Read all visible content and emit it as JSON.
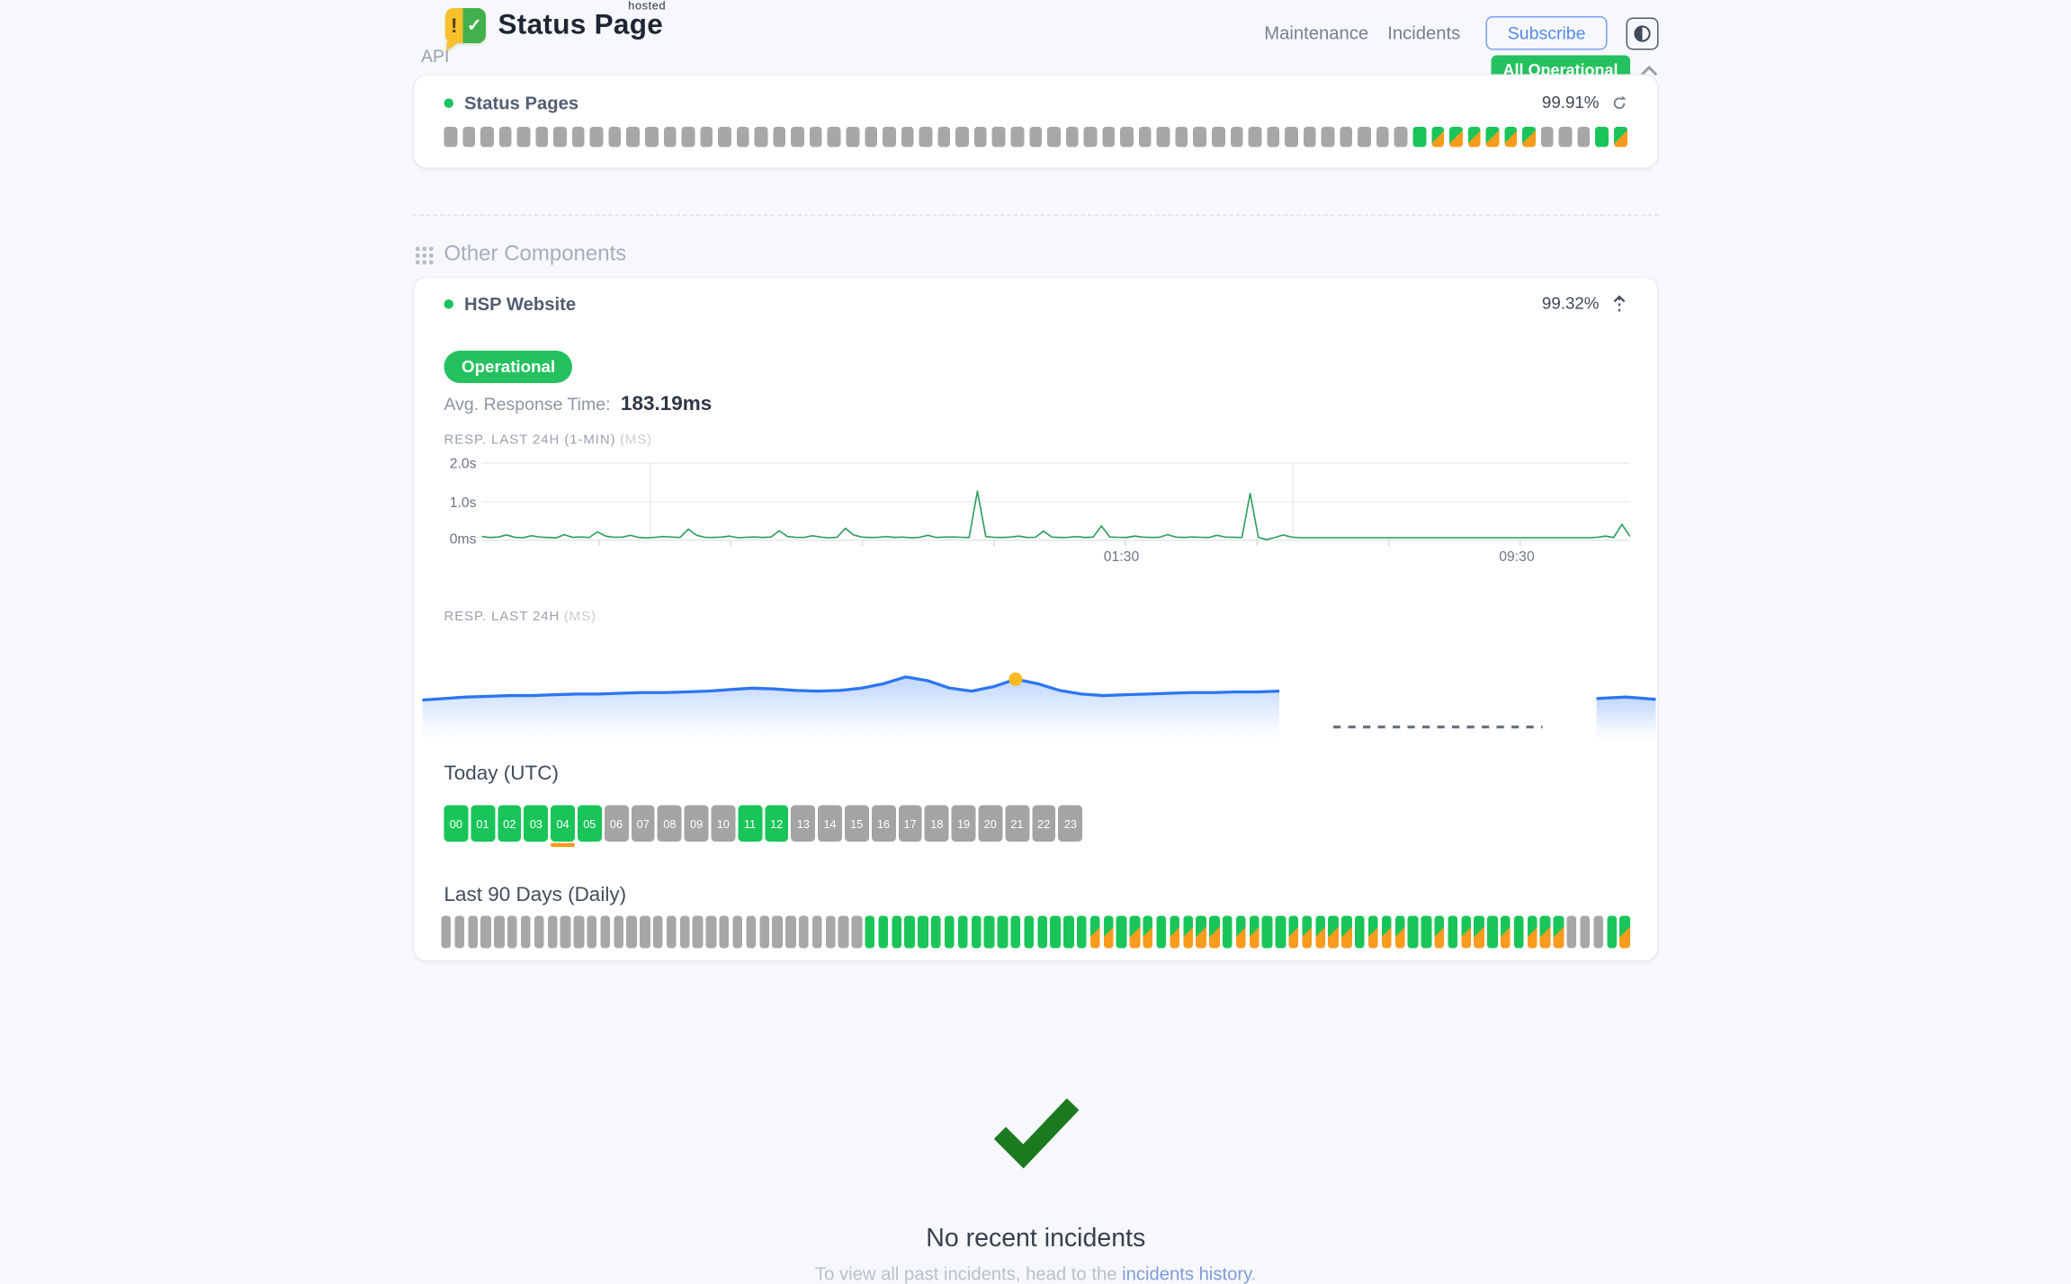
{
  "header": {
    "brand_title": "Status Page",
    "brand_superscript": "hosted",
    "logo_exclaim": "!",
    "logo_check": "✓",
    "nav": [
      "Maintenance",
      "Incidents"
    ],
    "subscribe_label": "Subscribe",
    "overall_status": "All Operational"
  },
  "api_group": {
    "label": "API",
    "component_name": "Status Pages",
    "uptime": "99.91%",
    "bars": "gggggggggggggggggggggggggggggggggggggggggggggggggggggGMMMMMMgggGM"
  },
  "other": {
    "section_title": "Other Components",
    "component_name": "HSP Website",
    "uptime": "99.32%",
    "status_label": "Operational",
    "avg_label": "Avg. Response Time:",
    "avg_value": "183.19ms",
    "today_title": "Today (UTC)",
    "hours": [
      {
        "label": "00",
        "status": "up"
      },
      {
        "label": "01",
        "status": "up"
      },
      {
        "label": "02",
        "status": "up"
      },
      {
        "label": "03",
        "status": "up"
      },
      {
        "label": "04",
        "status": "up",
        "degraded": true
      },
      {
        "label": "05",
        "status": "up"
      },
      {
        "label": "06",
        "status": "none"
      },
      {
        "label": "07",
        "status": "none"
      },
      {
        "label": "08",
        "status": "none"
      },
      {
        "label": "09",
        "status": "none"
      },
      {
        "label": "10",
        "status": "none"
      },
      {
        "label": "11",
        "status": "up"
      },
      {
        "label": "12",
        "status": "up"
      },
      {
        "label": "13",
        "status": "none"
      },
      {
        "label": "14",
        "status": "none"
      },
      {
        "label": "15",
        "status": "none"
      },
      {
        "label": "16",
        "status": "none"
      },
      {
        "label": "17",
        "status": "none"
      },
      {
        "label": "18",
        "status": "none"
      },
      {
        "label": "19",
        "status": "none"
      },
      {
        "label": "20",
        "status": "none"
      },
      {
        "label": "21",
        "status": "none"
      },
      {
        "label": "22",
        "status": "none"
      },
      {
        "label": "23",
        "status": "none"
      }
    ],
    "last90_title": "Last 90 Days (Daily)",
    "days": "ggggggggggggggggggggggggggggggggGGGGGGGGGGGGGGGGGMMGMMGMMMMGMMGGMMMMMGMMMGGMGMMGMGMMMgggGM"
  },
  "incidents": {
    "title": "No recent incidents",
    "note_prefix": "To view all past incidents, head to the ",
    "note_link": "incidents history",
    "note_suffix": "."
  },
  "colors": {
    "green": "#19c558",
    "orange": "#f99b1d",
    "grey_bar": "#a7a7a7",
    "badge_green": "#24c15e",
    "chart_green": "#2f9f5f",
    "chart_blue": "#2b76f3",
    "marker_yellow": "#f7bb1f",
    "check_green": "#1b7a20",
    "link_blue": "#7d9bd9"
  },
  "chart_data": [
    {
      "type": "line",
      "title": "RESP. LAST 24H (1-MIN)",
      "unit": "(MS)",
      "ylabel_ticks": [
        "2.0s",
        "1.0s",
        "0ms"
      ],
      "ylim_ms": [
        0,
        2000
      ],
      "xticks": [
        "01:30",
        "09:30"
      ],
      "color": "#2f9f5f",
      "values_ms": [
        110,
        85,
        95,
        150,
        90,
        80,
        130,
        95,
        85,
        75,
        160,
        90,
        100,
        85,
        230,
        120,
        90,
        95,
        140,
        85,
        75,
        90,
        110,
        95,
        85,
        300,
        140,
        90,
        85,
        95,
        120,
        80,
        90,
        100,
        85,
        95,
        260,
        110,
        90,
        85,
        130,
        95,
        80,
        90,
        320,
        150,
        95,
        85,
        90,
        110,
        85,
        95,
        75,
        90,
        140,
        85,
        95,
        100,
        90,
        85,
        1270,
        110,
        90,
        85,
        95,
        120,
        85,
        90,
        250,
        95,
        85,
        90,
        110,
        85,
        95,
        380,
        100,
        90,
        85,
        120,
        95,
        85,
        90,
        160,
        95,
        85,
        100,
        90,
        85,
        140,
        95,
        90,
        85,
        1210,
        90,
        30,
        85,
        150,
        95,
        80,
        80,
        80,
        80,
        80,
        80,
        80,
        80,
        80,
        80,
        80,
        80,
        80,
        80,
        80,
        80,
        80,
        80,
        80,
        80,
        80,
        80,
        80,
        80,
        80,
        80,
        80,
        80,
        80,
        80,
        80,
        80,
        80,
        80,
        80,
        80,
        90,
        120,
        85,
        420,
        110
      ]
    },
    {
      "type": "area",
      "title": "RESP. LAST 24H",
      "unit": "(MS)",
      "color": "#2b76f3",
      "values_ms": [
        150,
        152,
        154,
        155,
        156,
        156,
        157,
        158,
        158,
        159,
        160,
        160,
        161,
        162,
        164,
        166,
        165,
        163,
        162,
        163,
        166,
        172,
        181,
        176,
        166,
        162,
        168,
        178,
        172,
        163,
        158,
        156,
        157,
        158,
        159,
        160,
        160,
        161,
        161,
        162
      ],
      "marker_index": 27,
      "gap": "dashed",
      "resume_values_ms": [
        152,
        154,
        151
      ]
    }
  ]
}
